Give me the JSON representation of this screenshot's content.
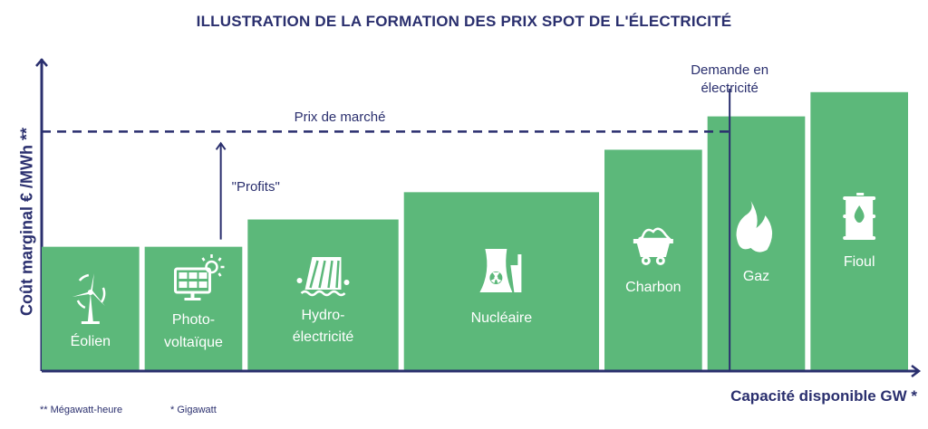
{
  "title": "ILLUSTRATION DE LA FORMATION DES PRIX SPOT DE L'ÉLECTRICITÉ",
  "footnotes": [
    "** Mégawatt-heure",
    "* Gigawatt"
  ],
  "colors": {
    "bar": "#5cb87a",
    "axis": "#2a2f6e",
    "icon": "#ffffff"
  },
  "chart_data": {
    "type": "bar",
    "title": "ILLUSTRATION DE LA FORMATION DES PRIX SPOT DE L'ÉLECTRICITÉ",
    "xlabel": "Capacité disponible GW *",
    "ylabel": "Coût marginal € /MWh **",
    "ylim": [
      0,
      100
    ],
    "ticks": false,
    "grid": false,
    "categories": [
      {
        "label": [
          "Éolien"
        ],
        "icon": "wind-turbine-icon",
        "value": 41,
        "capacity": 11
      },
      {
        "label": [
          "Photo-",
          "voltaïque"
        ],
        "icon": "solar-panel-icon",
        "value": 41,
        "capacity": 11
      },
      {
        "label": [
          "Hydro-",
          "électricité"
        ],
        "icon": "dam-icon",
        "value": 50,
        "capacity": 17
      },
      {
        "label": [
          "Nucléaire"
        ],
        "icon": "nuclear-plant-icon",
        "value": 59,
        "capacity": 22
      },
      {
        "label": [
          "Charbon"
        ],
        "icon": "coal-cart-icon",
        "value": 73,
        "capacity": 11
      },
      {
        "label": [
          "Gaz"
        ],
        "icon": "flame-icon",
        "value": 84,
        "capacity": 11
      },
      {
        "label": [
          "Fioul"
        ],
        "icon": "oil-barrel-icon",
        "value": 92,
        "capacity": 11
      }
    ],
    "market_price": {
      "label": "Prix de marché",
      "value": 79
    },
    "demand": {
      "label": [
        "Demande en",
        "électricité"
      ],
      "capacity": 74.5
    },
    "profits_annotation": {
      "label": "\"Profits\""
    }
  }
}
